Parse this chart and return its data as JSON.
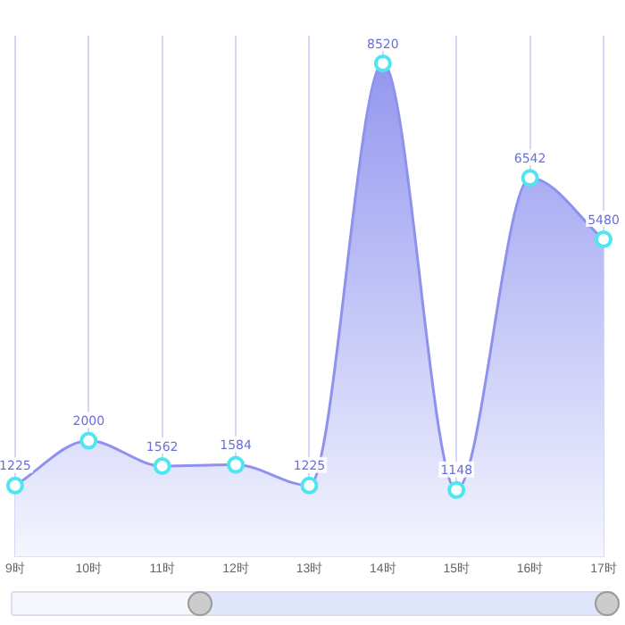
{
  "chart_data": {
    "type": "area",
    "categories": [
      "9时",
      "10时",
      "11时",
      "12时",
      "13时",
      "14时",
      "15时",
      "16时",
      "17时"
    ],
    "series": [
      {
        "color": "#8e92ee",
        "values": [
          1225,
          2000,
          1562,
          1584,
          1225,
          8520,
          1148,
          6542,
          5480
        ]
      }
    ],
    "data_labels": true,
    "grid": "x",
    "marker": "circle",
    "legend": false
  }
}
